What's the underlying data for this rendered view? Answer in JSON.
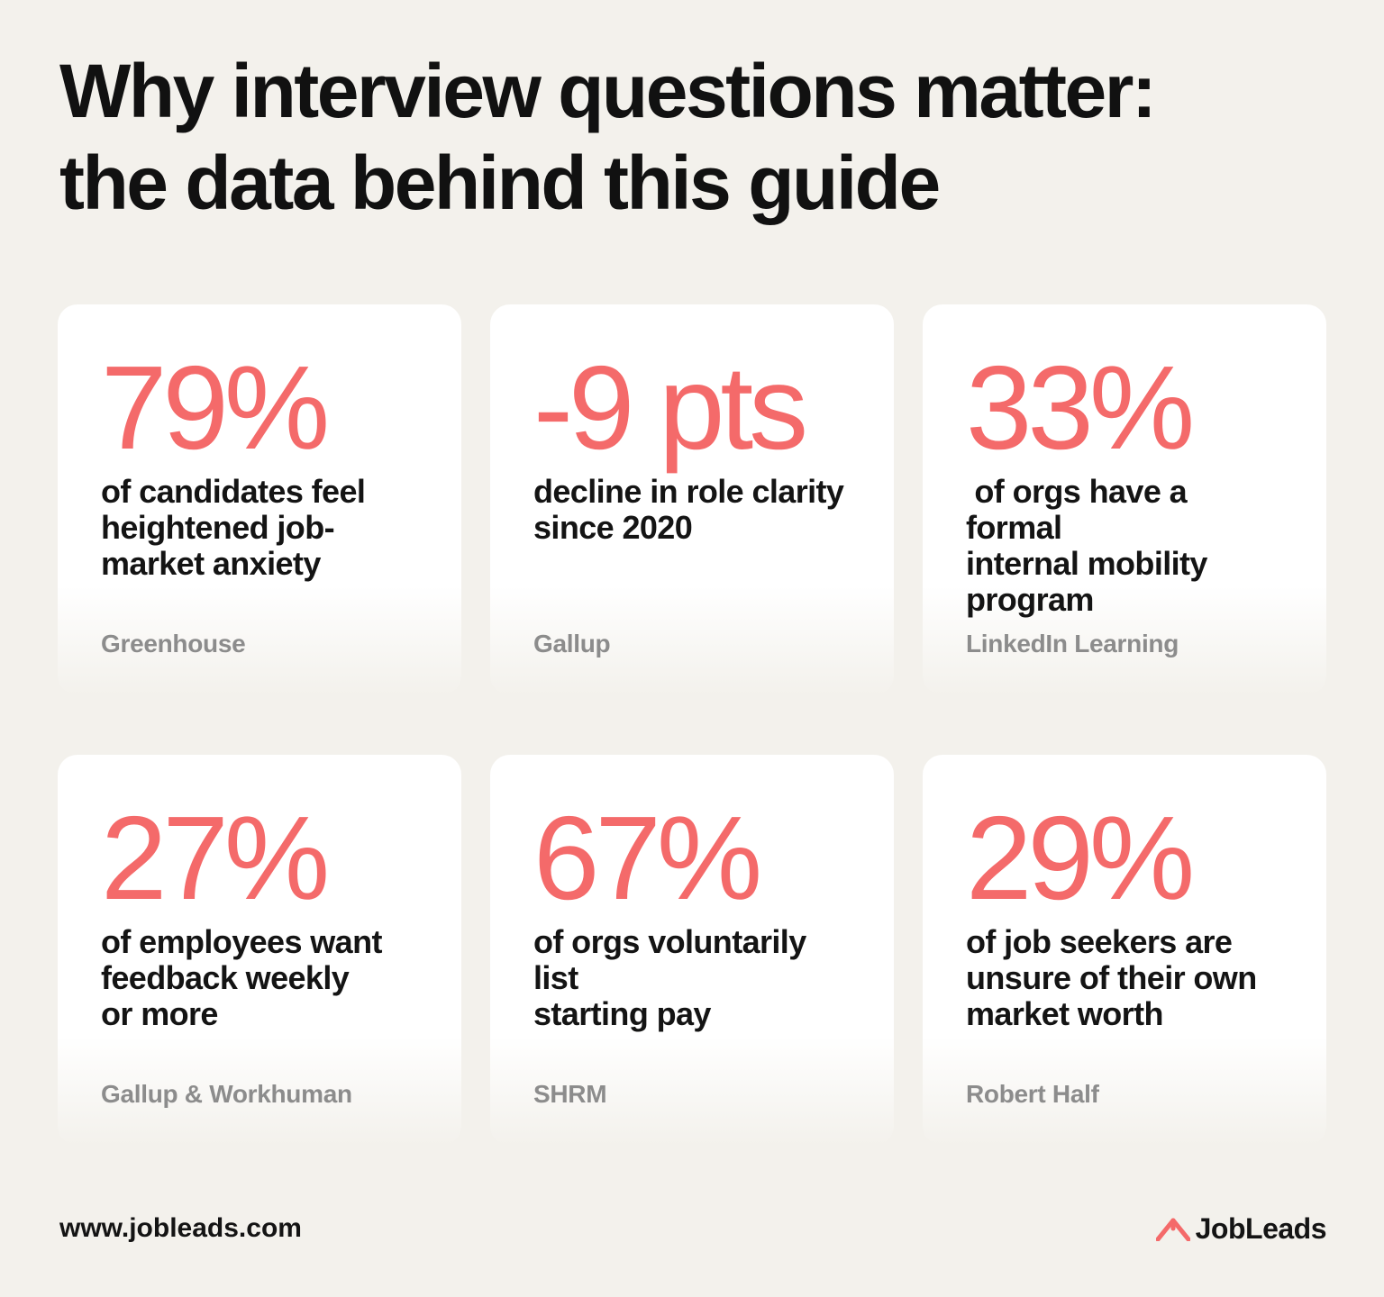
{
  "title": {
    "line1": "Why interview questions matter:",
    "line2": "the data behind this guide"
  },
  "cards": [
    {
      "stat": "79%",
      "description": "of candidates feel\nheightened job-\nmarket anxiety",
      "source": "Greenhouse"
    },
    {
      "stat": "-9 pts",
      "description": "decline in role clarity\nsince 2020",
      "source": "Gallup"
    },
    {
      "stat": "33%",
      "description": " of orgs have a formal\ninternal mobility\nprogram",
      "source": "LinkedIn Learning"
    },
    {
      "stat": "27%",
      "description": "of employees want\nfeedback weekly\nor more",
      "source": "Gallup & Workhuman"
    },
    {
      "stat": "67%",
      "description": "of orgs voluntarily list\nstarting pay",
      "source": "SHRM"
    },
    {
      "stat": "29%",
      "description": "of job seekers are\nunsure of their own\nmarket worth",
      "source": "Robert Half"
    }
  ],
  "footer": {
    "url": "www.jobleads.com",
    "brand": "JobLeads",
    "brand_icon": "jobleads-logo-icon"
  },
  "colors": {
    "background": "#f3f1ec",
    "accent": "#f46a6a",
    "text": "#141414",
    "source_text": "#8c8c8c",
    "card": "#ffffff"
  }
}
